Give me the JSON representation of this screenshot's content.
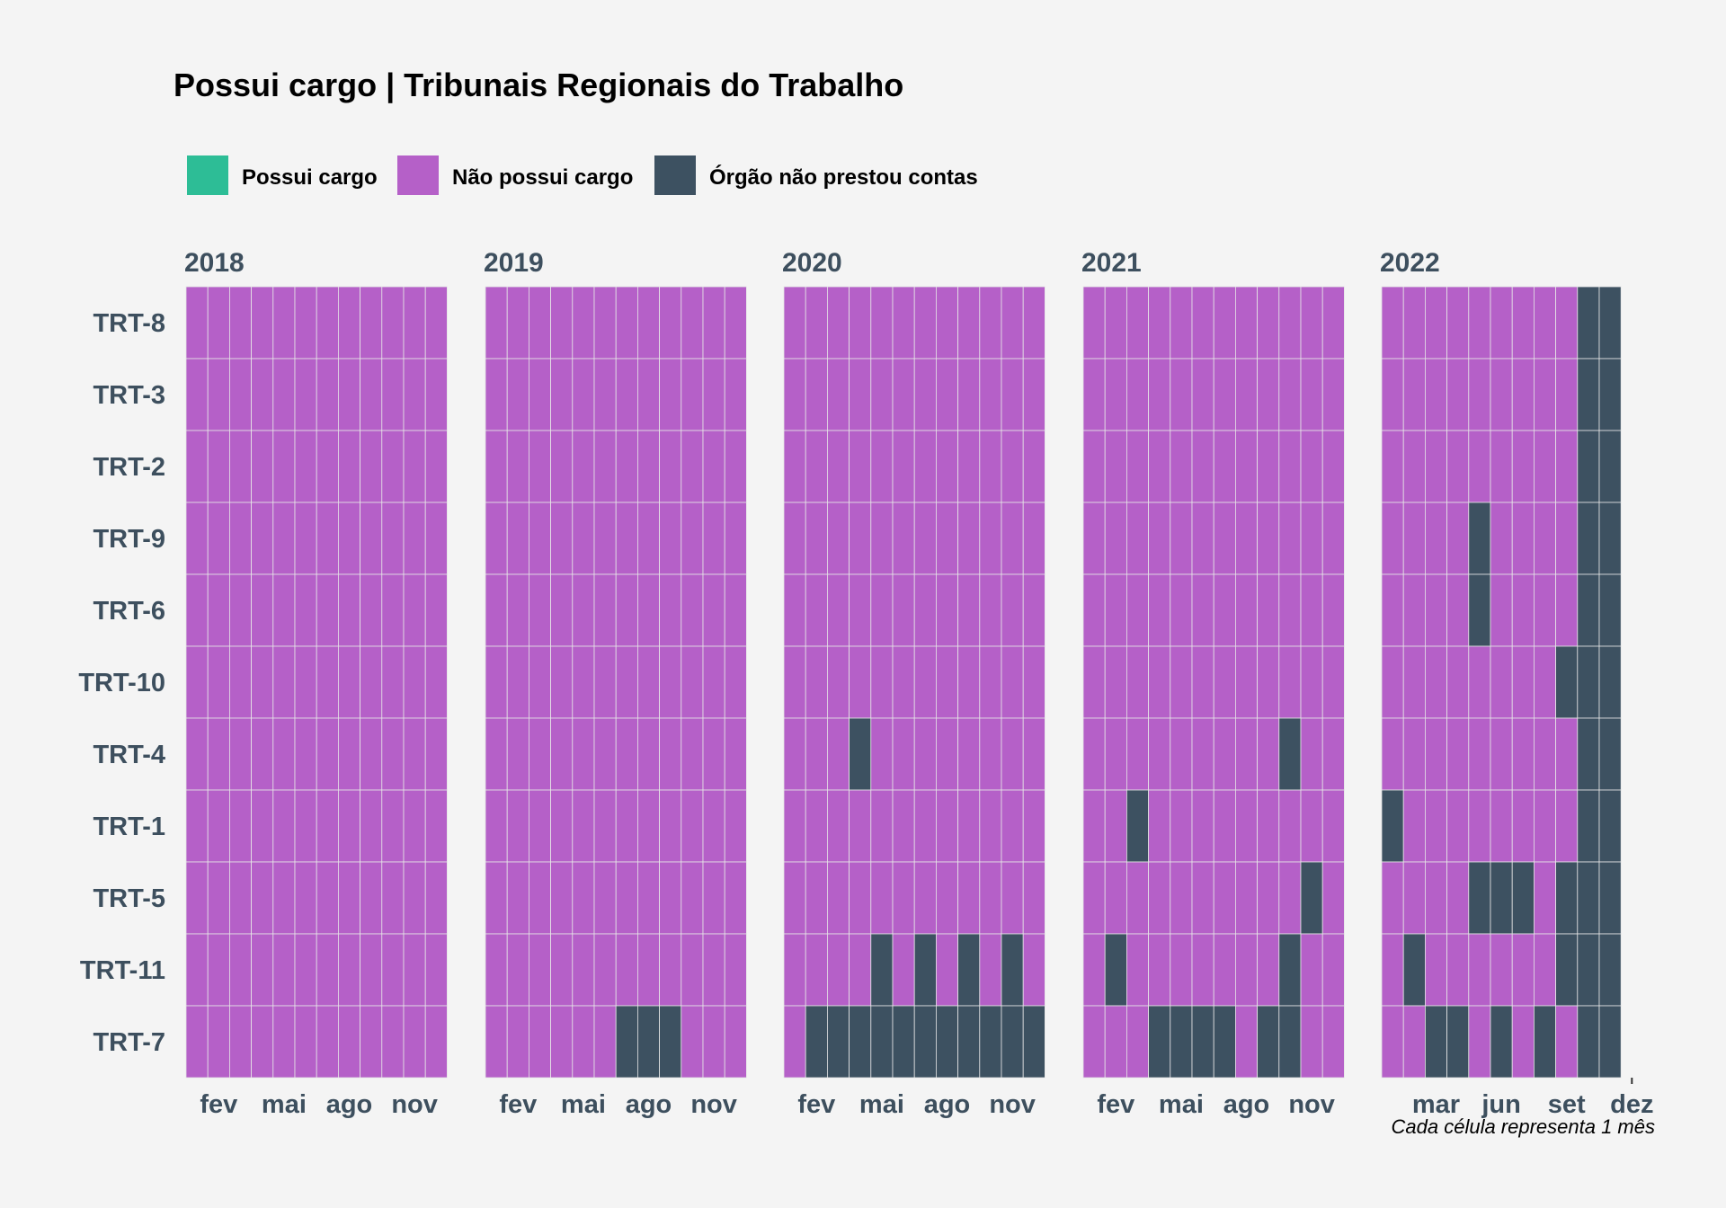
{
  "chart_data": {
    "type": "heatmap",
    "title": "Possui cargo | Tribunais Regionais do Trabalho",
    "caption": "Cada célula representa 1 mês",
    "legend": {
      "placement": "top-left",
      "items": [
        {
          "key": "P",
          "label": "Possui cargo",
          "color": "#2dbd96"
        },
        {
          "key": "N",
          "label": "Não possui cargo",
          "color": "#b560c8"
        },
        {
          "key": "O",
          "label": "Órgão não prestou contas",
          "color": "#3d5161"
        }
      ]
    },
    "rows": [
      "TRT-8",
      "TRT-3",
      "TRT-2",
      "TRT-9",
      "TRT-6",
      "TRT-10",
      "TRT-4",
      "TRT-1",
      "TRT-5",
      "TRT-11",
      "TRT-7"
    ],
    "years": [
      {
        "year": "2018",
        "months": 12,
        "xticks": [
          {
            "month": 2,
            "label": "fev"
          },
          {
            "month": 5,
            "label": "mai"
          },
          {
            "month": 8,
            "label": "ago"
          },
          {
            "month": 11,
            "label": "nov"
          }
        ],
        "grid": {
          "TRT-8": "NNNNNNNNNNNN",
          "TRT-3": "NNNNNNNNNNNN",
          "TRT-2": "NNNNNNNNNNNN",
          "TRT-9": "NNNNNNNNNNNN",
          "TRT-6": "NNNNNNNNNNNN",
          "TRT-10": "NNNNNNNNNNNN",
          "TRT-4": "NNNNNNNNNNNN",
          "TRT-1": "NNNNNNNNNNNN",
          "TRT-5": "NNNNNNNNNNNN",
          "TRT-11": "NNNNNNNNNNNN",
          "TRT-7": "NNNNNNNNNNNN"
        }
      },
      {
        "year": "2019",
        "months": 12,
        "xticks": [
          {
            "month": 2,
            "label": "fev"
          },
          {
            "month": 5,
            "label": "mai"
          },
          {
            "month": 8,
            "label": "ago"
          },
          {
            "month": 11,
            "label": "nov"
          }
        ],
        "grid": {
          "TRT-8": "NNNNNNNNNNNN",
          "TRT-3": "NNNNNNNNNNNN",
          "TRT-2": "NNNNNNNNNNNN",
          "TRT-9": "NNNNNNNNNNNN",
          "TRT-6": "NNNNNNNNNNNN",
          "TRT-10": "NNNNNNNNNNNN",
          "TRT-4": "NNNNNNNNNNNN",
          "TRT-1": "NNNNNNNNNNNN",
          "TRT-5": "NNNNNNNNNNNN",
          "TRT-11": "NNNNNNNNNNNN",
          "TRT-7": "NNNNNNOOONNN"
        }
      },
      {
        "year": "2020",
        "months": 12,
        "xticks": [
          {
            "month": 2,
            "label": "fev"
          },
          {
            "month": 5,
            "label": "mai"
          },
          {
            "month": 8,
            "label": "ago"
          },
          {
            "month": 11,
            "label": "nov"
          }
        ],
        "grid": {
          "TRT-8": "NNNNNNNNNNNN",
          "TRT-3": "NNNNNNNNNNNN",
          "TRT-2": "NNNNNNNNNNNN",
          "TRT-9": "NNNNNNNNNNNN",
          "TRT-6": "NNNNNNNNNNNN",
          "TRT-10": "NNNNNNNNNNNN",
          "TRT-4": "NNNONNNNNNNN",
          "TRT-1": "NNNNNNNNNNNN",
          "TRT-5": "NNNNNNNNNNNN",
          "TRT-11": "NNNNONONONON",
          "TRT-7": "NOOOOOOOOOOO"
        }
      },
      {
        "year": "2021",
        "months": 12,
        "xticks": [
          {
            "month": 2,
            "label": "fev"
          },
          {
            "month": 5,
            "label": "mai"
          },
          {
            "month": 8,
            "label": "ago"
          },
          {
            "month": 11,
            "label": "nov"
          }
        ],
        "grid": {
          "TRT-8": "NNNNNNNNNNNN",
          "TRT-3": "NNNNNNNNNNNN",
          "TRT-2": "NNNNNNNNNNNN",
          "TRT-9": "NNNNNNNNNNNN",
          "TRT-6": "NNNNNNNNNNNN",
          "TRT-10": "NNNNNNNNNNNN",
          "TRT-4": "NNNNNNNNNONN",
          "TRT-1": "NNONNNNNNNNN",
          "TRT-5": "NNNNNNNNNNON",
          "TRT-11": "NONNNNNNNONN",
          "TRT-7": "NNNOOOONOONN"
        }
      },
      {
        "year": "2022",
        "months": 11,
        "xticks": [
          {
            "month": 3,
            "label": "mar"
          },
          {
            "month": 6,
            "label": "jun"
          },
          {
            "month": 9,
            "label": "set"
          },
          {
            "month": 12,
            "label": "dez"
          }
        ],
        "grid": {
          "TRT-8": "NNNNNNNNNOO",
          "TRT-3": "NNNNNNNNNOO",
          "TRT-2": "NNNNNNNNNOO",
          "TRT-9": "NNNNONNNNOO",
          "TRT-6": "NNNNONNNNOO",
          "TRT-10": "NNNNNNNNOOO",
          "TRT-4": "NNNNNNNNNOO",
          "TRT-1": "ONNNNNNNNOO",
          "TRT-5": "NNNNOOONOOO",
          "TRT-11": "NONNNNNNOOO",
          "TRT-7": "NNOONONONOO"
        }
      }
    ]
  }
}
